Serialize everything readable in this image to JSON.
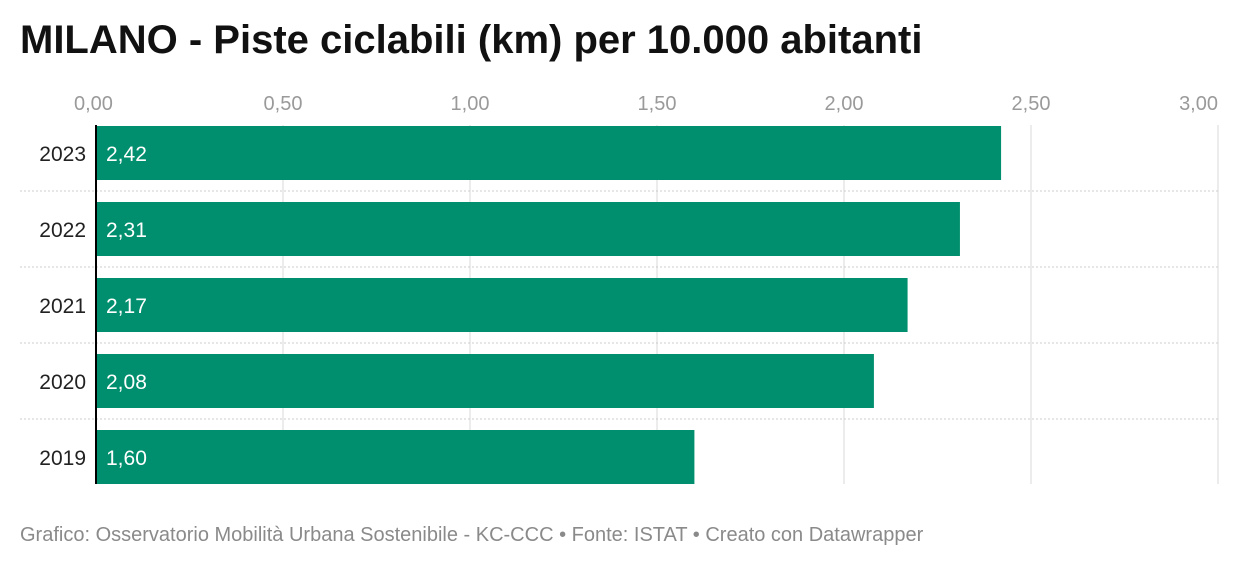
{
  "title": "MILANO - Piste ciclabili (km) per 10.000 abitanti",
  "footer": {
    "source": "Grafico: Osservatorio Mobilità Urbana Sostenibile - KC-CCC • Fonte: ISTAT • Creato con Datawrapper"
  },
  "colors": {
    "bar": "#008f6e",
    "grid": "#d9d9d9",
    "axis": "#000000"
  },
  "chart_data": {
    "type": "bar",
    "orientation": "horizontal",
    "categories": [
      "2023",
      "2022",
      "2021",
      "2020",
      "2019"
    ],
    "values": [
      2.42,
      2.31,
      2.17,
      2.08,
      1.6
    ],
    "value_labels": [
      "2,42",
      "2,31",
      "2,17",
      "2,08",
      "1,60"
    ],
    "xlim": [
      0,
      3
    ],
    "x_ticks": [
      0,
      0.5,
      1,
      1.5,
      2,
      2.5,
      3
    ],
    "x_tick_labels": [
      "0,00",
      "0,50",
      "1,00",
      "1,50",
      "2,00",
      "2,50",
      "3,00"
    ],
    "grid": true,
    "legend": "none"
  }
}
